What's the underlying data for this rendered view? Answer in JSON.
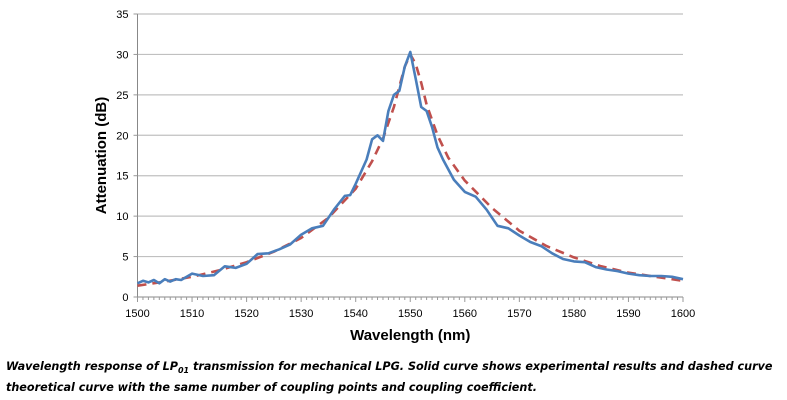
{
  "chart_data": {
    "type": "line",
    "title": "",
    "xlabel": "Wavelength (nm)",
    "ylabel": "Attenuation (dB)",
    "xlim": [
      1500,
      1600
    ],
    "ylim": [
      0,
      35
    ],
    "xticks": [
      1500,
      1510,
      1520,
      1530,
      1540,
      1550,
      1560,
      1570,
      1580,
      1590,
      1600
    ],
    "yticks": [
      0,
      5,
      10,
      15,
      20,
      25,
      30,
      35
    ],
    "grid": "horizontal",
    "series": [
      {
        "name": "Experimental",
        "style": "solid",
        "color": "#4a7ebb",
        "x": [
          1500,
          1501,
          1502,
          1503,
          1504,
          1505,
          1506,
          1507,
          1508,
          1510,
          1512,
          1514,
          1516,
          1518,
          1520,
          1522,
          1524,
          1526,
          1528,
          1530,
          1532,
          1534,
          1536,
          1538,
          1539,
          1540,
          1542,
          1543,
          1544,
          1545,
          1546,
          1547,
          1548,
          1549,
          1550,
          1551,
          1552,
          1553,
          1554,
          1555,
          1556,
          1558,
          1560,
          1562,
          1564,
          1566,
          1568,
          1570,
          1572,
          1574,
          1576,
          1578,
          1580,
          1582,
          1584,
          1586,
          1588,
          1590,
          1592,
          1594,
          1596,
          1598,
          1600
        ],
        "y": [
          1.7,
          2.0,
          1.8,
          2.1,
          1.7,
          2.2,
          1.9,
          2.2,
          2.1,
          2.9,
          2.6,
          2.7,
          3.8,
          3.6,
          4.1,
          5.3,
          5.4,
          5.9,
          6.5,
          7.7,
          8.5,
          8.8,
          10.8,
          12.5,
          12.6,
          14.0,
          17.0,
          19.5,
          20.0,
          19.3,
          23.0,
          25.0,
          25.5,
          28.5,
          30.3,
          27.0,
          23.5,
          23.0,
          21.0,
          18.5,
          17.0,
          14.5,
          13.0,
          12.4,
          10.8,
          8.8,
          8.5,
          7.6,
          6.8,
          6.3,
          5.4,
          4.7,
          4.4,
          4.3,
          3.7,
          3.4,
          3.2,
          2.9,
          2.7,
          2.6,
          2.6,
          2.5,
          2.2
        ]
      },
      {
        "name": "Theoretical",
        "style": "dashed",
        "color": "#c0504d",
        "x": [
          1500,
          1505,
          1510,
          1515,
          1520,
          1525,
          1530,
          1535,
          1540,
          1543,
          1545,
          1547,
          1548,
          1549,
          1550,
          1551,
          1552,
          1553,
          1555,
          1557,
          1560,
          1565,
          1570,
          1575,
          1580,
          1585,
          1590,
          1595,
          1600
        ],
        "y": [
          1.4,
          1.9,
          2.5,
          3.3,
          4.3,
          5.6,
          7.3,
          9.8,
          13.4,
          16.8,
          19.6,
          23.5,
          26.0,
          28.5,
          30.0,
          28.8,
          26.5,
          23.8,
          20.0,
          17.2,
          14.4,
          11.0,
          8.2,
          6.3,
          4.9,
          3.8,
          3.0,
          2.5,
          2.0
        ]
      }
    ]
  },
  "caption": {
    "prefix": "Wavelength response of LP",
    "subscript": "01",
    "suffix": " transmission for mechanical LPG. Solid curve shows experimental results and dashed curve theoretical curve with the same number of coupling points and coupling coefficient."
  }
}
